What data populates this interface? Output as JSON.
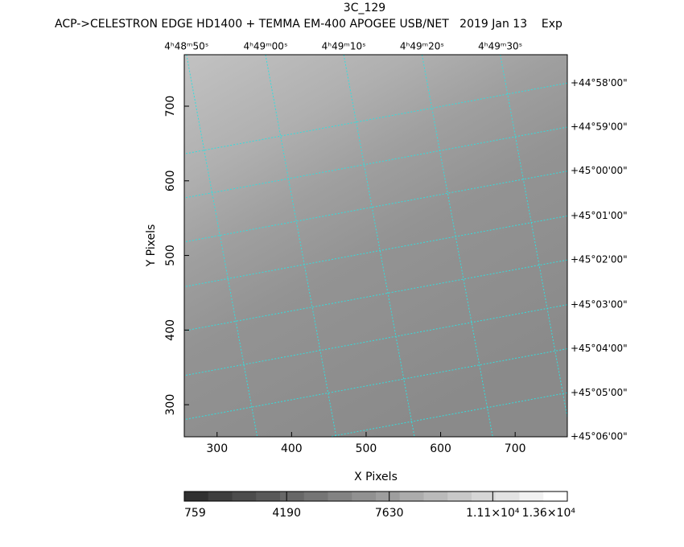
{
  "chart_data": {
    "type": "image",
    "title": "3C_129",
    "subtitle": "ACP->CELESTRON EDGE HD1400 + TEMMA EM-400 APOGEE USB/NET   2019 Jan 13    Exp",
    "x_label": "X Pixels",
    "y_label": "Y Pixels",
    "xlim": [
      256,
      770
    ],
    "ylim": [
      257,
      769
    ],
    "xticks": [
      300,
      400,
      500,
      600,
      700
    ],
    "yticks": [
      300,
      400,
      500,
      600,
      700
    ],
    "ra_ticks": [
      {
        "value": 259,
        "label": "4ʰ48ᵐ50ˢ"
      },
      {
        "value": 365,
        "label": "4ʰ49ᵐ00ˢ"
      },
      {
        "value": 470,
        "label": "4ʰ49ᵐ10ˢ"
      },
      {
        "value": 575,
        "label": "4ʰ49ᵐ20ˢ"
      },
      {
        "value": 680,
        "label": "4ʰ49ᵐ30ˢ"
      }
    ],
    "dec_ticks": [
      {
        "value": 731,
        "label": "+44°58'00\""
      },
      {
        "value": 672,
        "label": "+44°59'00\""
      },
      {
        "value": 613,
        "label": "+45°00'00\""
      },
      {
        "value": 553,
        "label": "+45°01'00\""
      },
      {
        "value": 494,
        "label": "+45°02'00\""
      },
      {
        "value": 434,
        "label": "+45°03'00\""
      },
      {
        "value": 375,
        "label": "+45°04'00\""
      },
      {
        "value": 316,
        "label": "+45°05'00\""
      },
      {
        "value": 257,
        "label": "+45°06'00\""
      }
    ],
    "grid_color": "#33dddd",
    "colorbar_lim": [
      759,
      13600
    ],
    "colorbar_ticks": [
      759,
      4190,
      7630,
      {
        "value": 11100,
        "label": "1.11×10⁴"
      },
      {
        "value": 13600,
        "label": "1.36×10⁴"
      }
    ]
  }
}
